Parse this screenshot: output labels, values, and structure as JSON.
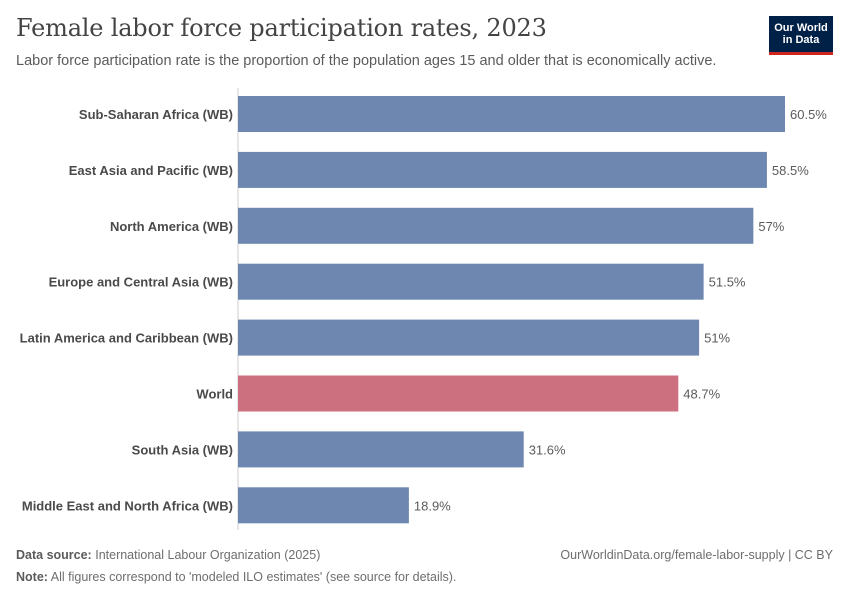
{
  "header": {
    "title": "Female labor force participation rates, 2023",
    "subtitle": "Labor force participation rate is the proportion of the population ages 15 and older that is economically active.",
    "logo_line1": "Our World",
    "logo_line2": "in Data"
  },
  "chart_data": {
    "type": "bar",
    "orientation": "horizontal",
    "title": "Female labor force participation rates, 2023",
    "subtitle": "Labor force participation rate is the proportion of the population ages 15 and older that is economically active.",
    "categories": [
      "Sub-Saharan Africa (WB)",
      "East Asia and Pacific (WB)",
      "North America (WB)",
      "Europe and Central Asia (WB)",
      "Latin America and Caribbean (WB)",
      "World",
      "South Asia (WB)",
      "Middle East and North Africa (WB)"
    ],
    "values": [
      60.5,
      58.5,
      57,
      51.5,
      51,
      48.7,
      31.6,
      18.9
    ],
    "value_labels": [
      "60.5%",
      "58.5%",
      "57%",
      "51.5%",
      "51%",
      "48.7%",
      "31.6%",
      "18.9%"
    ],
    "unit": "%",
    "highlight": "World",
    "xlim": [
      0,
      60.5
    ],
    "grid": false,
    "colors": {
      "bar": "#6d87b0",
      "highlight": "#cc6f7e",
      "axis": "#cccccc"
    }
  },
  "footer": {
    "source_label": "Data source:",
    "source_text": "International Labour Organization (2025)",
    "note_label": "Note:",
    "note_text": "All figures correspond to 'modeled ILO estimates' (see source for details).",
    "credit": "OurWorldinData.org/female-labor-supply | CC BY"
  }
}
